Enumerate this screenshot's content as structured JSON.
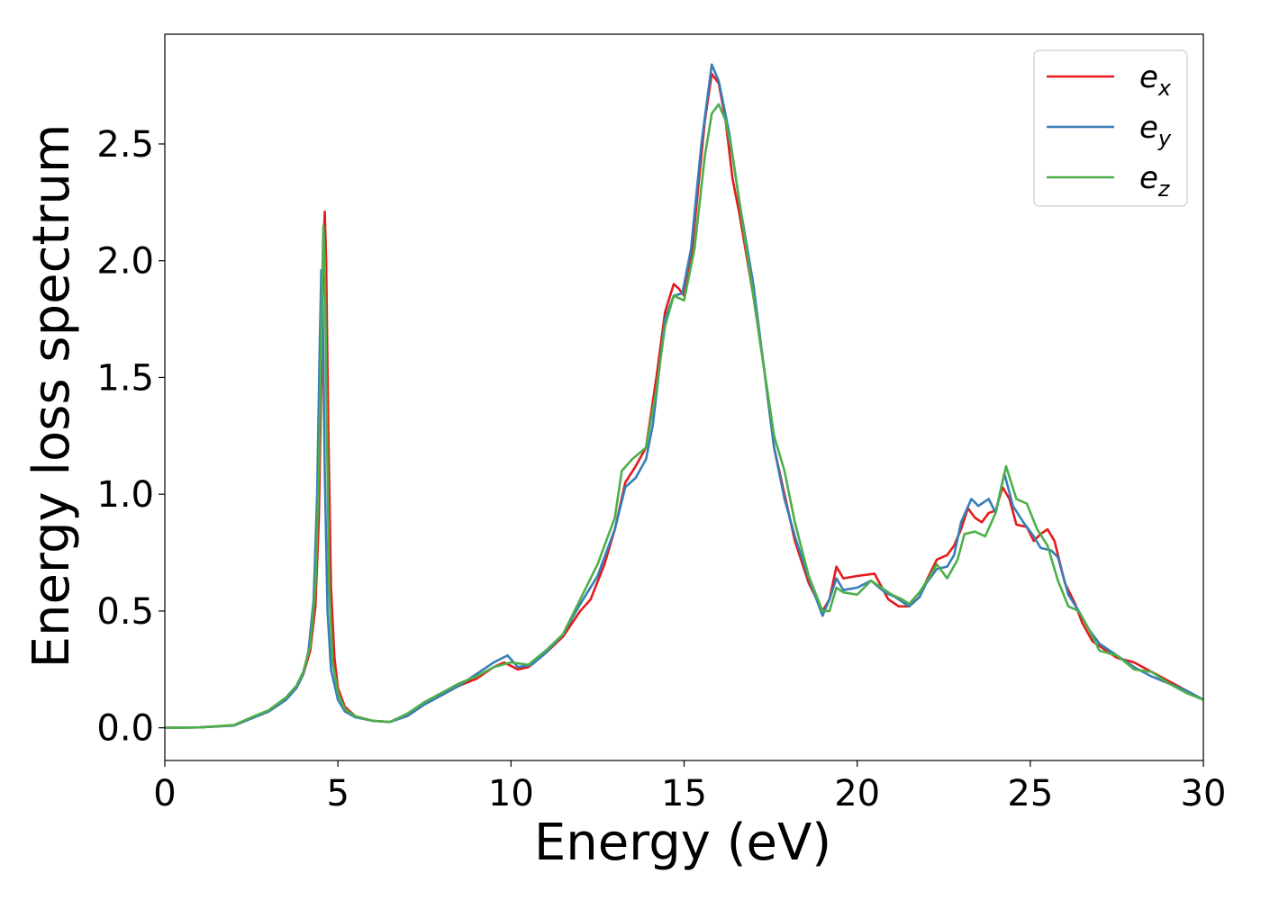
{
  "chart_data": {
    "type": "line",
    "title": "",
    "xlabel": "Energy (eV)",
    "ylabel": "Energy loss spectrum",
    "xlim": [
      0,
      30
    ],
    "ylim": [
      -0.14,
      2.97
    ],
    "xticks": [
      0,
      5,
      10,
      15,
      20,
      25,
      30
    ],
    "xtick_labels": [
      "0",
      "5",
      "10",
      "15",
      "20",
      "25",
      "30"
    ],
    "yticks": [
      0.0,
      0.5,
      1.0,
      1.5,
      2.0,
      2.5
    ],
    "ytick_labels": [
      "0.0",
      "0.5",
      "1.0",
      "1.5",
      "2.0",
      "2.5"
    ],
    "grid": false,
    "legend_position": "top-right",
    "series": [
      {
        "name": "e_x",
        "label_base": "e",
        "label_sub": "x",
        "color": "#e41a1c",
        "points": [
          [
            0,
            0
          ],
          [
            1,
            0.002
          ],
          [
            2,
            0.01
          ],
          [
            2.5,
            0.04
          ],
          [
            3,
            0.07
          ],
          [
            3.5,
            0.12
          ],
          [
            3.8,
            0.17
          ],
          [
            4.0,
            0.23
          ],
          [
            4.2,
            0.33
          ],
          [
            4.35,
            0.52
          ],
          [
            4.45,
            0.9
          ],
          [
            4.52,
            1.5
          ],
          [
            4.58,
            2.05
          ],
          [
            4.62,
            2.21
          ],
          [
            4.66,
            2.0
          ],
          [
            4.72,
            1.3
          ],
          [
            4.8,
            0.6
          ],
          [
            4.9,
            0.3
          ],
          [
            5.0,
            0.17
          ],
          [
            5.2,
            0.09
          ],
          [
            5.5,
            0.05
          ],
          [
            6.0,
            0.03
          ],
          [
            6.5,
            0.025
          ],
          [
            7.0,
            0.05
          ],
          [
            7.5,
            0.1
          ],
          [
            8,
            0.14
          ],
          [
            8.5,
            0.18
          ],
          [
            9,
            0.21
          ],
          [
            9.5,
            0.26
          ],
          [
            9.8,
            0.28
          ],
          [
            10.2,
            0.25
          ],
          [
            10.5,
            0.26
          ],
          [
            11,
            0.32
          ],
          [
            11.5,
            0.39
          ],
          [
            12,
            0.5
          ],
          [
            12.3,
            0.55
          ],
          [
            12.7,
            0.7
          ],
          [
            13,
            0.85
          ],
          [
            13.3,
            1.05
          ],
          [
            13.6,
            1.12
          ],
          [
            13.9,
            1.2
          ],
          [
            14.2,
            1.5
          ],
          [
            14.45,
            1.78
          ],
          [
            14.7,
            1.9
          ],
          [
            14.85,
            1.88
          ],
          [
            15,
            1.85
          ],
          [
            15.2,
            2.0
          ],
          [
            15.4,
            2.3
          ],
          [
            15.6,
            2.6
          ],
          [
            15.8,
            2.8
          ],
          [
            16.0,
            2.76
          ],
          [
            16.2,
            2.6
          ],
          [
            16.4,
            2.35
          ],
          [
            16.6,
            2.2
          ],
          [
            17.0,
            1.85
          ],
          [
            17.3,
            1.55
          ],
          [
            17.6,
            1.2
          ],
          [
            17.9,
            1.0
          ],
          [
            18.2,
            0.8
          ],
          [
            18.6,
            0.62
          ],
          [
            19.0,
            0.5
          ],
          [
            19.2,
            0.55
          ],
          [
            19.4,
            0.69
          ],
          [
            19.6,
            0.64
          ],
          [
            20,
            0.65
          ],
          [
            20.5,
            0.66
          ],
          [
            20.9,
            0.55
          ],
          [
            21.2,
            0.52
          ],
          [
            21.5,
            0.52
          ],
          [
            21.8,
            0.56
          ],
          [
            22.0,
            0.63
          ],
          [
            22.3,
            0.72
          ],
          [
            22.6,
            0.74
          ],
          [
            22.8,
            0.78
          ],
          [
            23.0,
            0.85
          ],
          [
            23.2,
            0.94
          ],
          [
            23.4,
            0.9
          ],
          [
            23.6,
            0.88
          ],
          [
            23.8,
            0.92
          ],
          [
            24.0,
            0.93
          ],
          [
            24.2,
            1.03
          ],
          [
            24.4,
            0.98
          ],
          [
            24.6,
            0.87
          ],
          [
            24.9,
            0.86
          ],
          [
            25.1,
            0.8
          ],
          [
            25.3,
            0.83
          ],
          [
            25.5,
            0.85
          ],
          [
            25.7,
            0.8
          ],
          [
            26.0,
            0.62
          ],
          [
            26.3,
            0.53
          ],
          [
            26.5,
            0.45
          ],
          [
            26.8,
            0.37
          ],
          [
            27.2,
            0.33
          ],
          [
            27.5,
            0.3
          ],
          [
            28,
            0.28
          ],
          [
            28.5,
            0.24
          ],
          [
            29,
            0.2
          ],
          [
            29.5,
            0.16
          ],
          [
            30,
            0.12
          ]
        ]
      },
      {
        "name": "e_y",
        "label_base": "e",
        "label_sub": "y",
        "color": "#377eb8",
        "points": [
          [
            0,
            0
          ],
          [
            1,
            0.002
          ],
          [
            2,
            0.01
          ],
          [
            2.5,
            0.04
          ],
          [
            3,
            0.07
          ],
          [
            3.5,
            0.12
          ],
          [
            3.8,
            0.17
          ],
          [
            4.0,
            0.23
          ],
          [
            4.15,
            0.33
          ],
          [
            4.3,
            0.55
          ],
          [
            4.4,
            1.0
          ],
          [
            4.47,
            1.6
          ],
          [
            4.52,
            1.96
          ],
          [
            4.56,
            1.8
          ],
          [
            4.62,
            1.1
          ],
          [
            4.7,
            0.5
          ],
          [
            4.8,
            0.25
          ],
          [
            5.0,
            0.12
          ],
          [
            5.2,
            0.07
          ],
          [
            5.5,
            0.045
          ],
          [
            6.0,
            0.03
          ],
          [
            6.5,
            0.025
          ],
          [
            7.0,
            0.05
          ],
          [
            7.5,
            0.1
          ],
          [
            8,
            0.14
          ],
          [
            8.5,
            0.18
          ],
          [
            9,
            0.23
          ],
          [
            9.5,
            0.28
          ],
          [
            9.9,
            0.31
          ],
          [
            10.2,
            0.26
          ],
          [
            10.6,
            0.27
          ],
          [
            11,
            0.32
          ],
          [
            11.5,
            0.4
          ],
          [
            12,
            0.53
          ],
          [
            12.5,
            0.65
          ],
          [
            13,
            0.85
          ],
          [
            13.3,
            1.03
          ],
          [
            13.6,
            1.07
          ],
          [
            13.9,
            1.15
          ],
          [
            14.1,
            1.3
          ],
          [
            14.45,
            1.75
          ],
          [
            14.7,
            1.85
          ],
          [
            14.95,
            1.86
          ],
          [
            15.2,
            2.05
          ],
          [
            15.5,
            2.5
          ],
          [
            15.8,
            2.84
          ],
          [
            16.0,
            2.77
          ],
          [
            16.3,
            2.55
          ],
          [
            16.6,
            2.25
          ],
          [
            17.0,
            1.9
          ],
          [
            17.3,
            1.55
          ],
          [
            17.6,
            1.2
          ],
          [
            17.9,
            0.98
          ],
          [
            18.2,
            0.82
          ],
          [
            18.6,
            0.64
          ],
          [
            19.0,
            0.48
          ],
          [
            19.2,
            0.55
          ],
          [
            19.4,
            0.64
          ],
          [
            19.6,
            0.59
          ],
          [
            20,
            0.6
          ],
          [
            20.4,
            0.63
          ],
          [
            20.8,
            0.58
          ],
          [
            21.1,
            0.56
          ],
          [
            21.5,
            0.52
          ],
          [
            21.8,
            0.56
          ],
          [
            22.0,
            0.62
          ],
          [
            22.3,
            0.68
          ],
          [
            22.6,
            0.69
          ],
          [
            22.8,
            0.74
          ],
          [
            23.0,
            0.88
          ],
          [
            23.3,
            0.98
          ],
          [
            23.5,
            0.95
          ],
          [
            23.8,
            0.98
          ],
          [
            24.0,
            0.92
          ],
          [
            24.25,
            1.09
          ],
          [
            24.5,
            0.95
          ],
          [
            24.8,
            0.88
          ],
          [
            25.1,
            0.82
          ],
          [
            25.3,
            0.77
          ],
          [
            25.6,
            0.76
          ],
          [
            25.8,
            0.73
          ],
          [
            26.1,
            0.57
          ],
          [
            26.4,
            0.5
          ],
          [
            26.7,
            0.42
          ],
          [
            27.0,
            0.36
          ],
          [
            27.5,
            0.31
          ],
          [
            28,
            0.26
          ],
          [
            28.5,
            0.22
          ],
          [
            29,
            0.19
          ],
          [
            29.5,
            0.16
          ],
          [
            30,
            0.12
          ]
        ]
      },
      {
        "name": "e_z",
        "label_base": "e",
        "label_sub": "z",
        "color": "#4daf4a",
        "points": [
          [
            0,
            0
          ],
          [
            1,
            0.002
          ],
          [
            2,
            0.012
          ],
          [
            2.5,
            0.045
          ],
          [
            3,
            0.075
          ],
          [
            3.5,
            0.13
          ],
          [
            3.8,
            0.18
          ],
          [
            4.0,
            0.24
          ],
          [
            4.2,
            0.35
          ],
          [
            4.35,
            0.6
          ],
          [
            4.45,
            1.1
          ],
          [
            4.52,
            1.7
          ],
          [
            4.58,
            2.15
          ],
          [
            4.62,
            2.0
          ],
          [
            4.68,
            1.3
          ],
          [
            4.75,
            0.6
          ],
          [
            4.85,
            0.28
          ],
          [
            5.0,
            0.15
          ],
          [
            5.2,
            0.08
          ],
          [
            5.5,
            0.05
          ],
          [
            6.0,
            0.03
          ],
          [
            6.5,
            0.025
          ],
          [
            7.0,
            0.06
          ],
          [
            7.5,
            0.11
          ],
          [
            8,
            0.15
          ],
          [
            8.5,
            0.19
          ],
          [
            9,
            0.22
          ],
          [
            9.5,
            0.26
          ],
          [
            10,
            0.28
          ],
          [
            10.5,
            0.27
          ],
          [
            11,
            0.33
          ],
          [
            11.5,
            0.4
          ],
          [
            12,
            0.55
          ],
          [
            12.5,
            0.7
          ],
          [
            13,
            0.9
          ],
          [
            13.2,
            1.1
          ],
          [
            13.5,
            1.15
          ],
          [
            13.9,
            1.2
          ],
          [
            14.2,
            1.45
          ],
          [
            14.45,
            1.72
          ],
          [
            14.7,
            1.85
          ],
          [
            15.0,
            1.83
          ],
          [
            15.3,
            2.05
          ],
          [
            15.6,
            2.45
          ],
          [
            15.8,
            2.63
          ],
          [
            16.0,
            2.67
          ],
          [
            16.2,
            2.6
          ],
          [
            16.4,
            2.45
          ],
          [
            16.7,
            2.15
          ],
          [
            17.0,
            1.85
          ],
          [
            17.3,
            1.55
          ],
          [
            17.6,
            1.25
          ],
          [
            17.9,
            1.1
          ],
          [
            18.2,
            0.88
          ],
          [
            18.6,
            0.65
          ],
          [
            19.0,
            0.5
          ],
          [
            19.2,
            0.5
          ],
          [
            19.4,
            0.6
          ],
          [
            19.6,
            0.58
          ],
          [
            20,
            0.57
          ],
          [
            20.4,
            0.63
          ],
          [
            20.7,
            0.6
          ],
          [
            21.0,
            0.57
          ],
          [
            21.3,
            0.55
          ],
          [
            21.5,
            0.53
          ],
          [
            21.8,
            0.58
          ],
          [
            22.1,
            0.65
          ],
          [
            22.3,
            0.7
          ],
          [
            22.6,
            0.64
          ],
          [
            22.9,
            0.72
          ],
          [
            23.1,
            0.83
          ],
          [
            23.4,
            0.84
          ],
          [
            23.7,
            0.82
          ],
          [
            24.0,
            0.92
          ],
          [
            24.3,
            1.12
          ],
          [
            24.6,
            0.98
          ],
          [
            24.9,
            0.96
          ],
          [
            25.2,
            0.85
          ],
          [
            25.5,
            0.78
          ],
          [
            25.8,
            0.63
          ],
          [
            26.1,
            0.52
          ],
          [
            26.4,
            0.5
          ],
          [
            26.7,
            0.42
          ],
          [
            27.0,
            0.33
          ],
          [
            27.5,
            0.31
          ],
          [
            28,
            0.25
          ],
          [
            28.5,
            0.24
          ],
          [
            29,
            0.19
          ],
          [
            29.5,
            0.15
          ],
          [
            30,
            0.12
          ]
        ]
      }
    ]
  }
}
